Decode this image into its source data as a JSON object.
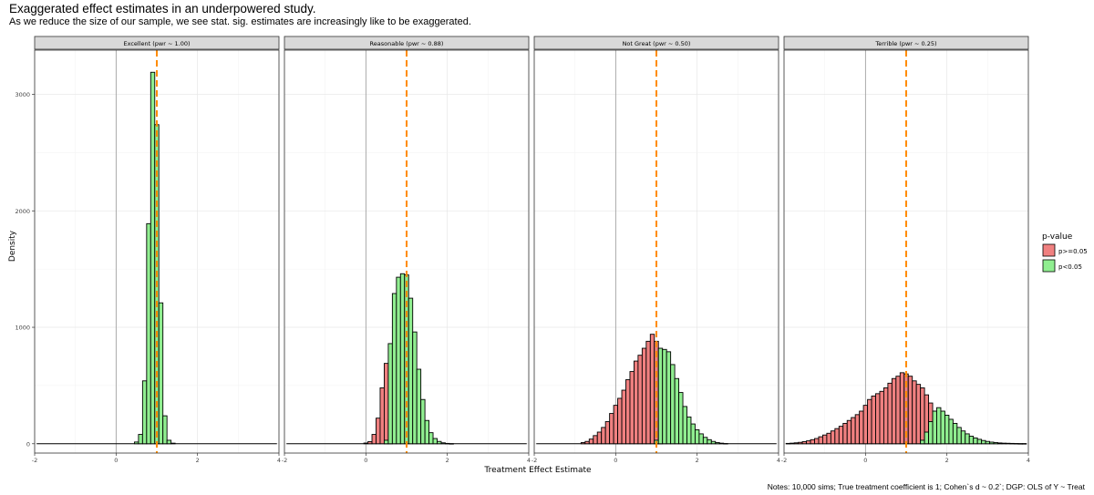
{
  "title": "Exaggerated effect estimates in an underpowered study.",
  "subtitle": "As we reduce the size of our sample, we see stat. sig. estimates are increasingly like to be exaggerated.",
  "caption": "Notes: 10,000 sims; True treatment coefficient is 1; Cohen`s d ~ 0.2`; DGP: OLS of Y ~ Treat",
  "colors": {
    "nonsig": "#F08080",
    "sig": "#90EE90",
    "truth_line": "#FF8C00"
  },
  "chart_data": {
    "type": "bar",
    "xlabel": "Treatment Effect Estimate",
    "ylabel": "Density",
    "xlim": [
      -2,
      4
    ],
    "ylim": [
      -80,
      3380
    ],
    "x_ticks": [
      -2,
      0,
      2,
      4
    ],
    "y_ticks": [
      0,
      1000,
      2000,
      3000
    ],
    "true_value": 1,
    "bin_width": 0.1,
    "grid": true,
    "legend": {
      "title": "p-value",
      "position": "right",
      "entries": [
        {
          "label": "p>=0.05",
          "color": "#F08080"
        },
        {
          "label": "p<0.05",
          "color": "#90EE90"
        }
      ]
    },
    "panels": [
      {
        "label": "Excellent (pwr ~ 1.00)",
        "series": [
          {
            "name": "p<0.05",
            "x": [
              0.5,
              0.6,
              0.7,
              0.8,
              0.9,
              1.0,
              1.1,
              1.2,
              1.3,
              1.4
            ],
            "values": [
              15,
              80,
              540,
              1890,
              3190,
              2740,
              1210,
              240,
              30,
              5
            ]
          }
        ]
      },
      {
        "label": "Reasonable (pwr ~ 0.88)",
        "series": [
          {
            "name": "p>=0.05",
            "x": [
              0.0,
              0.1,
              0.2,
              0.3,
              0.4,
              0.5,
              0.6
            ],
            "values": [
              6,
              18,
              80,
              220,
              480,
              690,
              210
            ]
          },
          {
            "name": "p<0.05",
            "x": [
              0.5,
              0.6,
              0.7,
              0.8,
              0.9,
              1.0,
              1.1,
              1.2,
              1.3,
              1.4,
              1.5,
              1.6,
              1.7,
              1.8,
              1.9,
              2.0,
              2.1
            ],
            "values": [
              30,
              860,
              1290,
              1430,
              1460,
              1450,
              1250,
              960,
              640,
              380,
              200,
              95,
              45,
              20,
              8,
              3,
              1
            ]
          }
        ]
      },
      {
        "label": "Not Great (pwr ~ 0.50)",
        "series": [
          {
            "name": "p>=0.05",
            "x": [
              -0.8,
              -0.7,
              -0.6,
              -0.5,
              -0.4,
              -0.3,
              -0.2,
              -0.1,
              0.0,
              0.1,
              0.2,
              0.3,
              0.4,
              0.5,
              0.6,
              0.7,
              0.8,
              0.9,
              1.0,
              1.1
            ],
            "values": [
              10,
              20,
              40,
              70,
              100,
              140,
              190,
              260,
              330,
              390,
              460,
              550,
              620,
              710,
              760,
              820,
              880,
              940,
              880,
              200
            ]
          },
          {
            "name": "p<0.05",
            "x": [
              1.0,
              1.1,
              1.2,
              1.3,
              1.4,
              1.5,
              1.6,
              1.7,
              1.8,
              1.9,
              2.0,
              2.1,
              2.2,
              2.3,
              2.4,
              2.5,
              2.6,
              2.7
            ],
            "values": [
              30,
              820,
              810,
              790,
              680,
              560,
              440,
              320,
              230,
              170,
              120,
              85,
              55,
              35,
              20,
              10,
              5,
              2
            ]
          }
        ]
      },
      {
        "label": "Terrible (pwr ~ 0.25)",
        "series": [
          {
            "name": "p>=0.05",
            "x": [
              -1.9,
              -1.8,
              -1.7,
              -1.6,
              -1.5,
              -1.4,
              -1.3,
              -1.2,
              -1.1,
              -1.0,
              -0.9,
              -0.8,
              -0.7,
              -0.6,
              -0.5,
              -0.4,
              -0.3,
              -0.2,
              -0.1,
              0.0,
              0.1,
              0.2,
              0.3,
              0.4,
              0.5,
              0.6,
              0.7,
              0.8,
              0.9,
              1.0,
              1.1,
              1.2,
              1.3,
              1.4,
              1.5,
              1.6,
              1.7,
              1.8
            ],
            "values": [
              3,
              5,
              8,
              12,
              18,
              25,
              35,
              45,
              60,
              75,
              90,
              110,
              130,
              150,
              175,
              200,
              225,
              250,
              280,
              330,
              380,
              410,
              430,
              450,
              480,
              520,
              560,
              580,
              610,
              600,
              580,
              540,
              510,
              480,
              420,
              350,
              280,
              100
            ]
          },
          {
            "name": "p<0.05",
            "x": [
              1.4,
              1.5,
              1.6,
              1.7,
              1.8,
              1.9,
              2.0,
              2.1,
              2.2,
              2.3,
              2.4,
              2.5,
              2.6,
              2.7,
              2.8,
              2.9,
              3.0,
              3.1,
              3.2,
              3.3,
              3.4,
              3.5,
              3.6,
              3.7,
              3.8,
              3.9
            ],
            "values": [
              30,
              100,
              190,
              280,
              310,
              280,
              245,
              210,
              175,
              140,
              110,
              85,
              65,
              50,
              38,
              28,
              20,
              14,
              10,
              7,
              5,
              4,
              3,
              2,
              1,
              1
            ]
          }
        ]
      }
    ]
  }
}
